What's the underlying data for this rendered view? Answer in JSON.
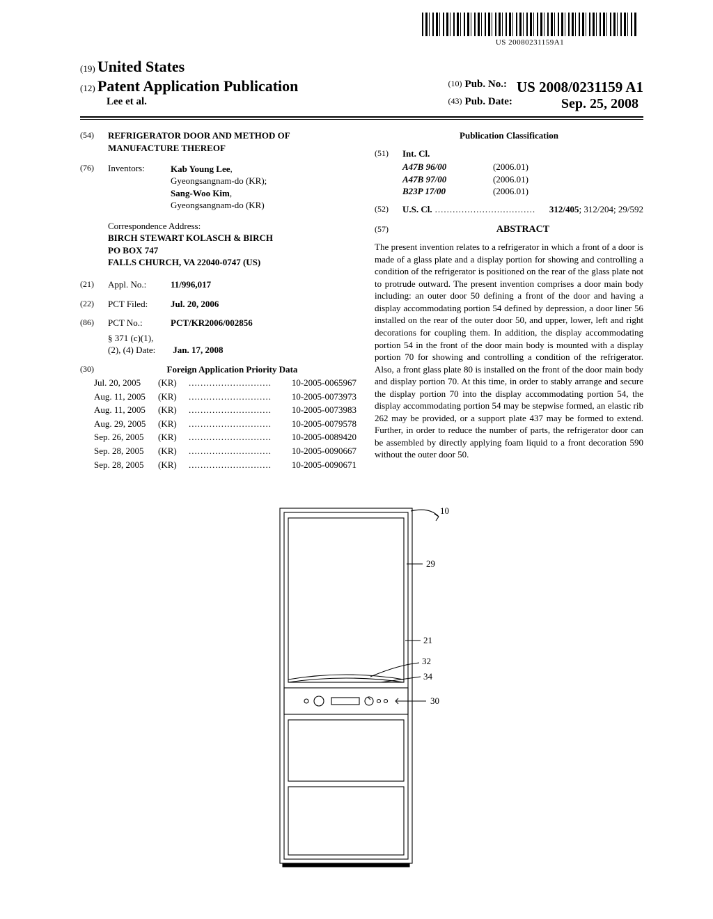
{
  "barcode_text": "US 20080231159A1",
  "header": {
    "num19": "(19)",
    "country": "United States",
    "num12": "(12)",
    "pubtype": "Patent Application Publication",
    "authors": "Lee et al.",
    "num10": "(10)",
    "pubno_label": "Pub. No.:",
    "pubno": "US 2008/0231159 A1",
    "num43": "(43)",
    "pubdate_label": "Pub. Date:",
    "pubdate": "Sep. 25, 2008"
  },
  "s54": {
    "num": "(54)",
    "title": "REFRIGERATOR DOOR AND METHOD OF MANUFACTURE THEREOF"
  },
  "s76": {
    "num": "(76)",
    "label": "Inventors:",
    "inv1_name": "Kab Young Lee",
    "inv1_loc": "Gyeongsangnam-do (KR);",
    "inv2_name": "Sang-Woo Kim",
    "inv2_loc": "Gyeongsangnam-do (KR)"
  },
  "corr": {
    "label": "Correspondence Address:",
    "l1": "BIRCH STEWART KOLASCH & BIRCH",
    "l2": "PO BOX 747",
    "l3": "FALLS CHURCH, VA 22040-0747 (US)"
  },
  "s21": {
    "num": "(21)",
    "label": "Appl. No.:",
    "val": "11/996,017"
  },
  "s22": {
    "num": "(22)",
    "label": "PCT Filed:",
    "val": "Jul. 20, 2006"
  },
  "s86": {
    "num": "(86)",
    "label": "PCT No.:",
    "val": "PCT/KR2006/002856",
    "sub_label1": "§ 371 (c)(1),",
    "sub_label2": "(2), (4) Date:",
    "sub_val": "Jan. 17, 2008"
  },
  "s30": {
    "num": "(30)",
    "title": "Foreign Application Priority Data"
  },
  "priority": [
    {
      "date": "Jul. 20, 2005",
      "ctry": "(KR)",
      "num": "10-2005-0065967"
    },
    {
      "date": "Aug. 11, 2005",
      "ctry": "(KR)",
      "num": "10-2005-0073973"
    },
    {
      "date": "Aug. 11, 2005",
      "ctry": "(KR)",
      "num": "10-2005-0073983"
    },
    {
      "date": "Aug. 29, 2005",
      "ctry": "(KR)",
      "num": "10-2005-0079578"
    },
    {
      "date": "Sep. 26, 2005",
      "ctry": "(KR)",
      "num": "10-2005-0089420"
    },
    {
      "date": "Sep. 28, 2005",
      "ctry": "(KR)",
      "num": "10-2005-0090667"
    },
    {
      "date": "Sep. 28, 2005",
      "ctry": "(KR)",
      "num": "10-2005-0090671"
    }
  ],
  "pubclass": {
    "title": "Publication Classification"
  },
  "s51": {
    "num": "(51)",
    "label": "Int. Cl.",
    "rows": [
      {
        "code": "A47B 96/00",
        "yr": "(2006.01)"
      },
      {
        "code": "A47B 97/00",
        "yr": "(2006.01)"
      },
      {
        "code": "B23P 17/00",
        "yr": "(2006.01)"
      }
    ]
  },
  "s52": {
    "num": "(52)",
    "label": "U.S. Cl.",
    "val_bold": "312/405",
    "val_rest": "; 312/204; 29/592"
  },
  "s57": {
    "num": "(57)",
    "title": "ABSTRACT"
  },
  "abstract": "The present invention relates to a refrigerator in which a front of a door is made of a glass plate and a display portion for showing and controlling a condition of the refrigerator is positioned on the rear of the glass plate not to protrude outward. The present invention comprises a door main body including: an outer door 50 defining a front of the door and having a display accommodating portion 54 defined by depression, a door liner 56 installed on the rear of the outer door 50, and upper, lower, left and right decorations for coupling them. In addition, the display accommodating portion 54 in the front of the door main body is mounted with a display portion 70 for showing and controlling a condition of the refrigerator. Also, a front glass plate 80 is installed on the front of the door main body and display portion 70. At this time, in order to stably arrange and secure the display portion 70 into the display accommodating portion 54, the display accommodating portion 54 may be stepwise formed, an elastic rib 262 may be provided, or a support plate 437 may be formed to extend. Further, in order to reduce the number of parts, the refrigerator door can be assembled by directly applying foam liquid to a front decoration 590 without the outer door 50.",
  "figure_labels": {
    "n10": "10",
    "n29": "29",
    "n21": "21",
    "n32": "32",
    "n34": "34",
    "n30": "30"
  }
}
